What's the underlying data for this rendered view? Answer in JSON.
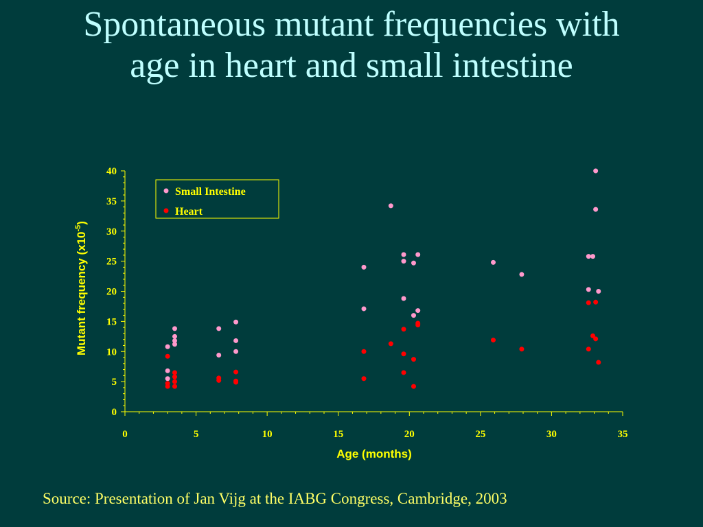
{
  "slide": {
    "title_line1": "Spontaneous mutant frequencies with",
    "title_line2": "age in heart and small intestine",
    "source": "Source: Presentation of Jan Vijg at the IABG Congress, Cambridge, 2003"
  },
  "colors": {
    "background": "#003C3C",
    "title": "#BFFFFF",
    "axis": "#FFFF00",
    "source": "#FFFF66",
    "small_intestine": "#FF99CC",
    "heart": "#FF0000"
  },
  "chart_data": {
    "type": "scatter",
    "title": "",
    "xlabel": "Age (months)",
    "ylabel_main": "Mutant frequency (x10",
    "ylabel_sup": "-5",
    "ylabel_close": ")",
    "xlim": [
      0,
      35
    ],
    "ylim": [
      0,
      40
    ],
    "x_ticks": [
      0,
      5,
      10,
      15,
      20,
      25,
      30,
      35
    ],
    "y_ticks": [
      0,
      5,
      10,
      15,
      20,
      25,
      30,
      35,
      40
    ],
    "grid": false,
    "legend_position": "top-left",
    "series": [
      {
        "name": "Small Intestine",
        "color": "#FF99CC",
        "points": [
          [
            3,
            10.8
          ],
          [
            3,
            6.8
          ],
          [
            3,
            5.5
          ],
          [
            3.5,
            13.8
          ],
          [
            3.5,
            12.5
          ],
          [
            3.5,
            11.8
          ],
          [
            3.5,
            11.2
          ],
          [
            6.6,
            13.8
          ],
          [
            6.6,
            9.4
          ],
          [
            7.8,
            14.9
          ],
          [
            7.8,
            11.8
          ],
          [
            7.8,
            10.0
          ],
          [
            16.8,
            24.0
          ],
          [
            16.8,
            17.1
          ],
          [
            18.7,
            34.2
          ],
          [
            19.6,
            26.1
          ],
          [
            19.6,
            25.0
          ],
          [
            19.6,
            18.8
          ],
          [
            20.3,
            24.7
          ],
          [
            20.3,
            16.0
          ],
          [
            20.6,
            26.1
          ],
          [
            20.6,
            16.8
          ],
          [
            25.9,
            24.8
          ],
          [
            27.9,
            22.8
          ],
          [
            32.6,
            25.8
          ],
          [
            32.6,
            20.3
          ],
          [
            32.9,
            25.8
          ],
          [
            33.1,
            40.0
          ],
          [
            33.1,
            33.6
          ],
          [
            33.3,
            20.0
          ]
        ]
      },
      {
        "name": "Heart",
        "color": "#FF0000",
        "points": [
          [
            3,
            9.2
          ],
          [
            3,
            4.7
          ],
          [
            3,
            4.2
          ],
          [
            3.5,
            6.5
          ],
          [
            3.5,
            5.8
          ],
          [
            3.5,
            5.0
          ],
          [
            3.5,
            4.2
          ],
          [
            6.6,
            5.6
          ],
          [
            6.6,
            5.2
          ],
          [
            7.8,
            6.6
          ],
          [
            7.8,
            5.1
          ],
          [
            7.8,
            4.9
          ],
          [
            16.8,
            10.0
          ],
          [
            16.8,
            5.5
          ],
          [
            18.7,
            11.3
          ],
          [
            19.6,
            13.7
          ],
          [
            19.6,
            9.6
          ],
          [
            19.6,
            6.5
          ],
          [
            20.3,
            8.7
          ],
          [
            20.3,
            4.2
          ],
          [
            20.6,
            14.7
          ],
          [
            20.6,
            14.4
          ],
          [
            25.9,
            11.9
          ],
          [
            27.9,
            10.4
          ],
          [
            32.6,
            18.1
          ],
          [
            32.6,
            10.4
          ],
          [
            32.9,
            12.6
          ],
          [
            33.1,
            18.2
          ],
          [
            33.1,
            12.1
          ],
          [
            33.3,
            8.2
          ]
        ]
      }
    ]
  }
}
